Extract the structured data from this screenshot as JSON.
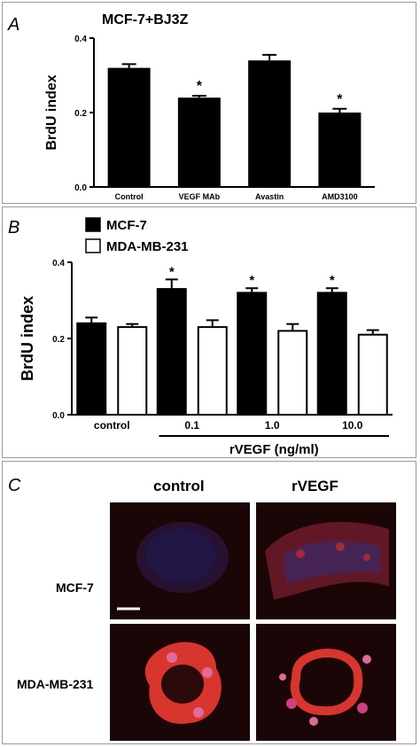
{
  "panels": {
    "A": {
      "label": "A",
      "title": "MCF-7+BJ3Z"
    },
    "B": {
      "label": "B",
      "group_label": "rVEGF (ng/ml)"
    },
    "C": {
      "label": "C",
      "columns": [
        "control",
        "rVEGF"
      ],
      "rows": [
        "MCF-7",
        "MDA-MB-231"
      ]
    }
  },
  "chart_data": [
    {
      "type": "bar",
      "title": "MCF-7+BJ3Z",
      "xlabel": "",
      "ylabel": "BrdU index",
      "ylim": [
        0,
        0.4
      ],
      "yticks": [
        "0.0",
        "0.2",
        "0.4"
      ],
      "categories": [
        "Control",
        "VEGF MAb",
        "Avastin",
        "AMD3100"
      ],
      "values": [
        0.32,
        0.24,
        0.34,
        0.2
      ],
      "errors": [
        0.01,
        0.005,
        0.015,
        0.01
      ],
      "significance": [
        "",
        "*",
        "",
        "*"
      ],
      "grid": false
    },
    {
      "type": "bar",
      "xlabel": "rVEGF (ng/ml)",
      "ylabel": "BrdU index",
      "ylim": [
        0,
        0.4
      ],
      "yticks": [
        "0.0",
        "0.2",
        "0.4"
      ],
      "categories": [
        "control",
        "0.1",
        "1.0",
        "10.0"
      ],
      "series": [
        {
          "name": "MCF-7",
          "color": "#000000",
          "values": [
            0.24,
            0.33,
            0.32,
            0.32
          ],
          "errors": [
            0.015,
            0.025,
            0.012,
            0.012
          ],
          "significance": [
            "",
            "*",
            "*",
            "*"
          ]
        },
        {
          "name": "MDA-MB-231",
          "color": "#ffffff",
          "values": [
            0.23,
            0.23,
            0.22,
            0.21
          ],
          "errors": [
            0.008,
            0.018,
            0.018,
            0.012
          ],
          "significance": [
            "",
            "",
            "",
            ""
          ]
        }
      ],
      "legend": "top-left",
      "grid": false
    }
  ]
}
